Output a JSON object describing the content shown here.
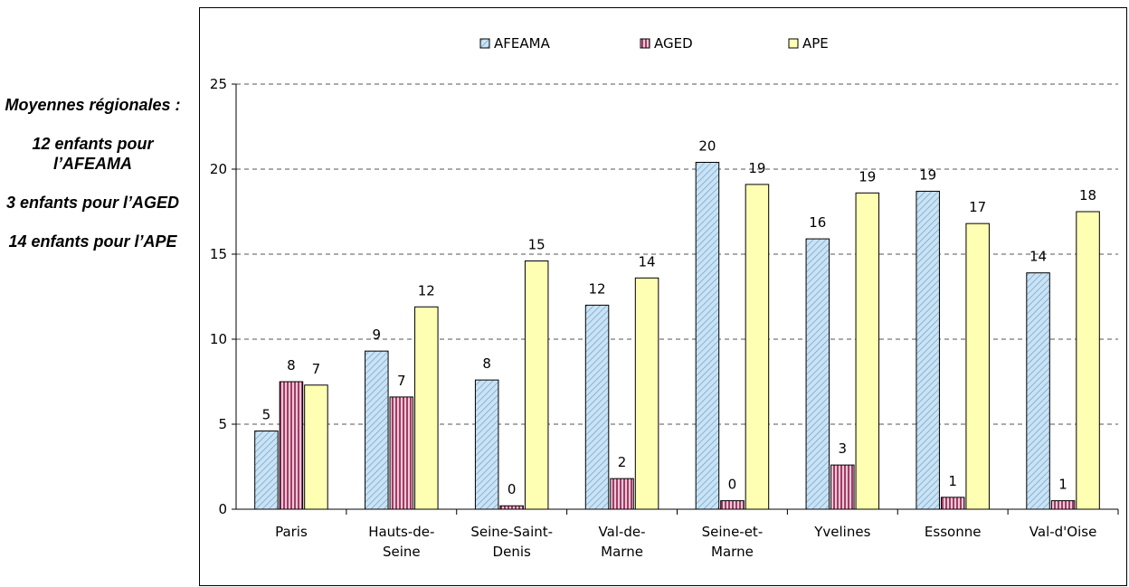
{
  "side_note": {
    "lines": [
      "Moyennes régionales :",
      "12 enfants pour l’AFEAMA",
      "3 enfants pour l’AGED",
      "14 enfants pour l’APE"
    ]
  },
  "chart_data": {
    "type": "bar",
    "title": "",
    "xlabel": "",
    "ylabel": "",
    "ylim": [
      0,
      25
    ],
    "yticks": [
      0,
      5,
      10,
      15,
      20,
      25
    ],
    "grid": true,
    "legend_position": "top",
    "categories": [
      "Paris",
      "Hauts-de-Seine",
      "Seine-Saint-Denis",
      "Val-de-Marne",
      "Seine-et-Marne",
      "Yvelines",
      "Essonne",
      "Val-d'Oise"
    ],
    "category_lines": [
      [
        "Paris"
      ],
      [
        "Hauts-de-",
        "Seine"
      ],
      [
        "Seine-Saint-",
        "Denis"
      ],
      [
        "Val-de-",
        "Marne"
      ],
      [
        "Seine-et-",
        "Marne"
      ],
      [
        "Yvelines"
      ],
      [
        "Essonne"
      ],
      [
        "Val-d'Oise"
      ]
    ],
    "series": [
      {
        "name": "AFEAMA",
        "color": "#c9e3f5",
        "pattern": "diagonal-hatch",
        "values": [
          4.6,
          9.3,
          7.6,
          12.0,
          20.4,
          15.9,
          18.7,
          13.9
        ],
        "labels": [
          "5",
          "9",
          "8",
          "12",
          "20",
          "16",
          "19",
          "14"
        ]
      },
      {
        "name": "AGED",
        "color": "#e8b4c8",
        "pattern": "vertical-stripes",
        "values": [
          7.5,
          6.6,
          0.2,
          1.8,
          0.5,
          2.6,
          0.7,
          0.5
        ],
        "labels": [
          "8",
          "7",
          "0",
          "2",
          "0",
          "3",
          "1",
          "1"
        ]
      },
      {
        "name": "APE",
        "color": "#ffffb3",
        "pattern": "solid",
        "values": [
          7.3,
          11.9,
          14.6,
          13.6,
          19.1,
          18.6,
          16.8,
          17.5
        ],
        "labels": [
          "7",
          "12",
          "15",
          "14",
          "19",
          "19",
          "17",
          "18"
        ]
      }
    ]
  }
}
